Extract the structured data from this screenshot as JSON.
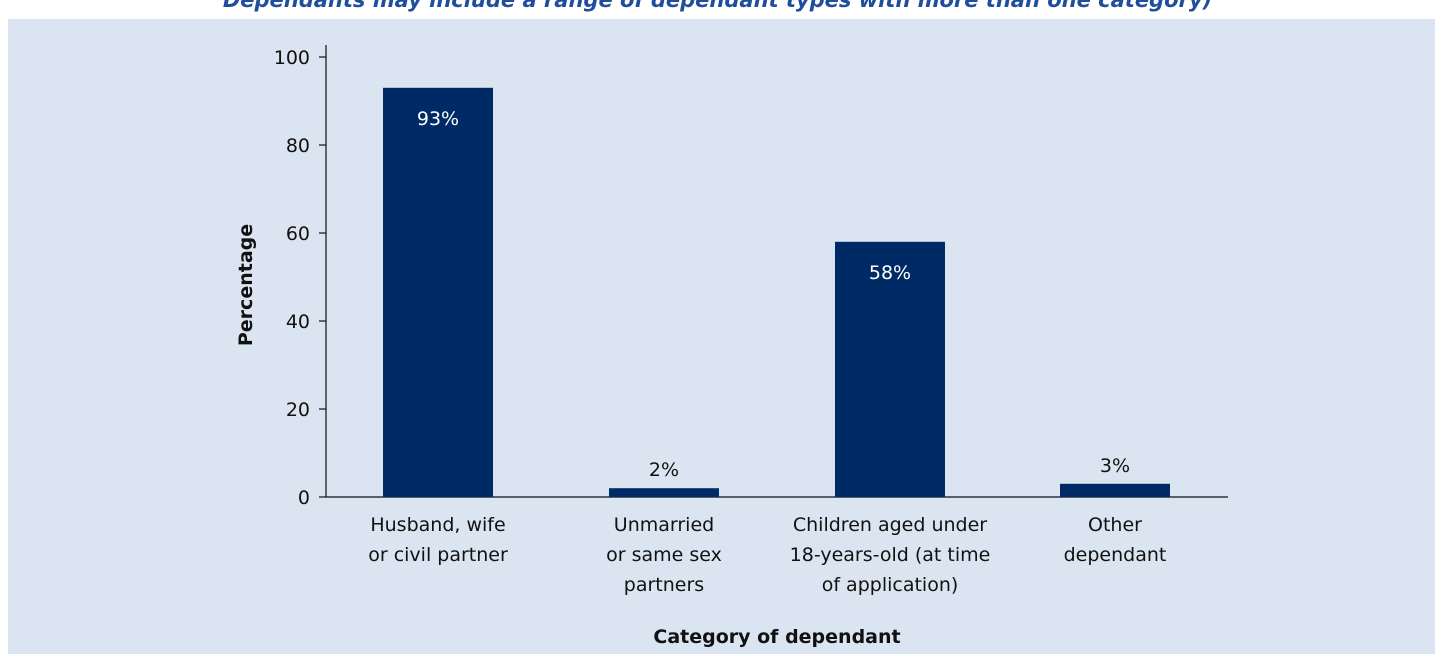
{
  "header": {
    "title": "Dependants may include a range of dependant types with more than one category)"
  },
  "colors": {
    "panel_background": "#dbe5f1",
    "bar": "#002a66",
    "title": "#1f4e9c"
  },
  "chart_data": {
    "type": "bar",
    "categories": [
      [
        "Husband, wife",
        "or civil partner"
      ],
      [
        "Unmarried",
        "or same sex",
        "partners"
      ],
      [
        "Children aged under",
        "18-years-old (at time",
        "of application)"
      ],
      [
        "Other",
        "dependant"
      ]
    ],
    "values": [
      93,
      2,
      58,
      3
    ],
    "data_labels": [
      "93%",
      "2%",
      "58%",
      "3%"
    ],
    "xlabel": "Category of dependant",
    "ylabel": "Percentage",
    "ylim": [
      0,
      100
    ],
    "yticks": [
      "0",
      "20",
      "40",
      "60",
      "80",
      "100"
    ],
    "grid": false,
    "legend": "none"
  }
}
